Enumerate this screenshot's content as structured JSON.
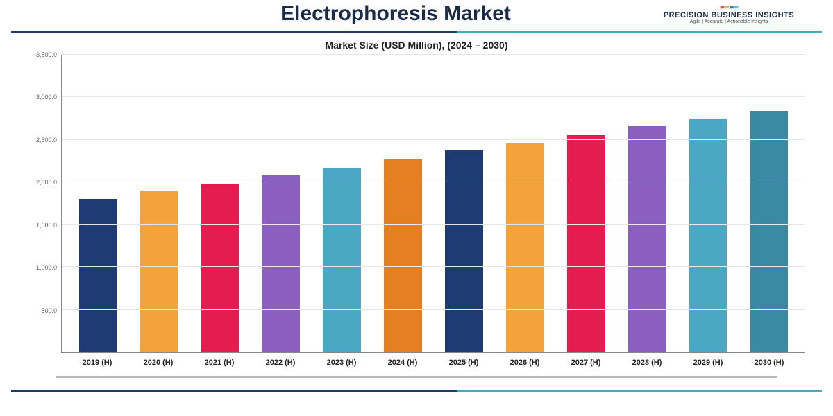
{
  "header": {
    "title": "Electrophoresis Market",
    "logo": {
      "company": "PRECISION BUSINESS INSIGHTS",
      "tagline": "Agile | Accurate | Actionable Insights",
      "icon_colors": [
        "#d9534f",
        "#f0ad4e",
        "#337ab7",
        "#5bc0de"
      ]
    }
  },
  "rule": {
    "left_color": "#1a3e72",
    "right_color": "#4aa8c4"
  },
  "chart": {
    "type": "bar",
    "title": "Market Size (USD Million), (2024 – 2030)",
    "background_color": "#ffffff",
    "grid_color": "#e8e8e8",
    "axis_color": "#888888",
    "title_fontsize": 14,
    "label_fontsize": 11,
    "tick_fontsize": 9,
    "bar_width": 0.62,
    "ylim": [
      0,
      3500
    ],
    "ytick_step": 500,
    "yticks": [
      {
        "v": 0,
        "label": ""
      },
      {
        "v": 500,
        "label": "500.0"
      },
      {
        "v": 1000,
        "label": "1,000.0"
      },
      {
        "v": 1500,
        "label": "1,500.0"
      },
      {
        "v": 2000,
        "label": "2,000.0"
      },
      {
        "v": 2500,
        "label": "2,500.0"
      },
      {
        "v": 3000,
        "label": "3,000.0"
      },
      {
        "v": 3500,
        "label": "3,500.0"
      }
    ],
    "categories": [
      "2019 (H)",
      "2020 (H)",
      "2021 (H)",
      "2022 (H)",
      "2023 (H)",
      "2024 (H)",
      "2025 (H)",
      "2026 (H)",
      "2027 (H)",
      "2028 (H)",
      "2029 (H)",
      "2030 (H)"
    ],
    "values": [
      1800,
      1900,
      1980,
      2080,
      2170,
      2270,
      2375,
      2460,
      2560,
      2660,
      2750,
      2840
    ],
    "bar_colors": [
      "#1f3b73",
      "#f2a33c",
      "#e41c50",
      "#8b5fbf",
      "#4aa8c4",
      "#e48022",
      "#1f3b73",
      "#f2a33c",
      "#e41c50",
      "#8b5fbf",
      "#4aa8c4",
      "#3a8aa3"
    ]
  }
}
